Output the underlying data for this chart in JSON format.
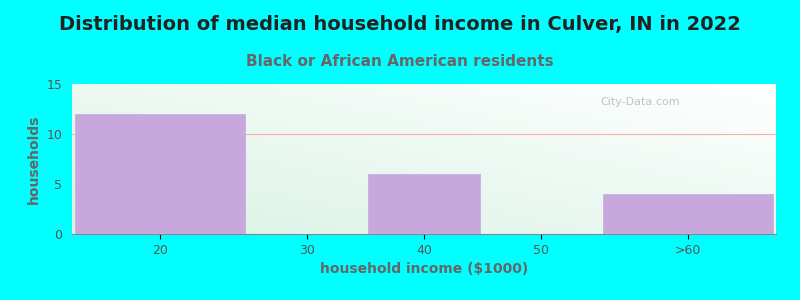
{
  "title": "Distribution of median household income in Culver, IN in 2022",
  "subtitle": "Black or African American residents",
  "xlabel": "household income ($1000)",
  "ylabel": "households",
  "bin_edges": [
    10,
    25,
    35,
    45,
    55,
    70
  ],
  "values": [
    12,
    0,
    6,
    0,
    4
  ],
  "bar_color": "#c8a8dc",
  "bar_edge_color": "#c8a8dc",
  "background_color": "#00FFFF",
  "plot_bg_color_topleft": "#ddeedd",
  "plot_bg_color_bottomright": "#ffffff",
  "ylim": [
    0,
    15
  ],
  "yticks": [
    0,
    5,
    10,
    15
  ],
  "xtick_labels": [
    "20",
    "30",
    "40",
    "50",
    ">60"
  ],
  "xtick_positions": [
    17.5,
    30,
    40,
    50,
    62.5
  ],
  "title_fontsize": 14,
  "subtitle_fontsize": 11,
  "axis_label_fontsize": 10,
  "tick_fontsize": 9,
  "title_color": "#222222",
  "subtitle_color": "#666666",
  "ylabel_color": "#666666",
  "xlabel_color": "#666666",
  "watermark": "City-Data.com",
  "grid_color": "#dddddd",
  "horizontal_line_color": "#ffaaaa"
}
